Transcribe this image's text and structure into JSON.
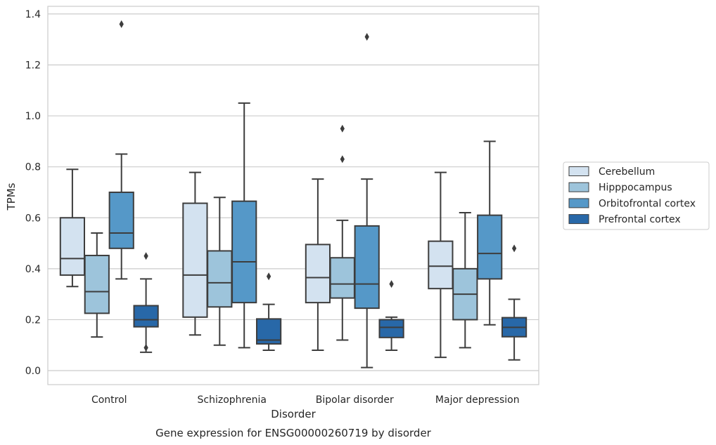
{
  "chart_data": {
    "type": "box",
    "caption": "Gene expression for ENSG00000260719 by disorder",
    "xlabel": "Disorder",
    "ylabel": "TPMs",
    "ylim": [
      -0.055,
      1.43
    ],
    "yticks": [
      0.0,
      0.2,
      0.4,
      0.6,
      0.8,
      1.0,
      1.2,
      1.4
    ],
    "ytick_labels": [
      "0.0",
      "0.2",
      "0.4",
      "0.6",
      "0.8",
      "1.0",
      "1.2",
      "1.4"
    ],
    "grid": "horizontal",
    "legend_position": "right",
    "categories": [
      "Control",
      "Schizophrenia",
      "Bipolar disorder",
      "Major depression"
    ],
    "series": [
      {
        "name": "Cerebellum",
        "color": "#d3e2f0",
        "boxes": [
          {
            "whislo": 0.33,
            "q1": 0.375,
            "med": 0.44,
            "q3": 0.6,
            "whishi": 0.79,
            "fliers": []
          },
          {
            "whislo": 0.14,
            "q1": 0.21,
            "med": 0.375,
            "q3": 0.657,
            "whishi": 0.778,
            "fliers": []
          },
          {
            "whislo": 0.08,
            "q1": 0.267,
            "med": 0.365,
            "q3": 0.495,
            "whishi": 0.752,
            "fliers": []
          },
          {
            "whislo": 0.052,
            "q1": 0.322,
            "med": 0.41,
            "q3": 0.508,
            "whishi": 0.778,
            "fliers": []
          }
        ]
      },
      {
        "name": "Hipppocampus",
        "color": "#9dc4db",
        "boxes": [
          {
            "whislo": 0.132,
            "q1": 0.225,
            "med": 0.31,
            "q3": 0.452,
            "whishi": 0.54,
            "fliers": []
          },
          {
            "whislo": 0.1,
            "q1": 0.25,
            "med": 0.345,
            "q3": 0.47,
            "whishi": 0.68,
            "fliers": []
          },
          {
            "whislo": 0.12,
            "q1": 0.285,
            "med": 0.34,
            "q3": 0.443,
            "whishi": 0.59,
            "fliers": [
              0.83,
              0.95
            ]
          },
          {
            "whislo": 0.09,
            "q1": 0.2,
            "med": 0.3,
            "q3": 0.4,
            "whishi": 0.62,
            "fliers": []
          }
        ]
      },
      {
        "name": "Orbitofrontal cortex",
        "color": "#5598c8",
        "boxes": [
          {
            "whislo": 0.36,
            "q1": 0.48,
            "med": 0.54,
            "q3": 0.7,
            "whishi": 0.85,
            "fliers": [
              1.36
            ]
          },
          {
            "whislo": 0.09,
            "q1": 0.267,
            "med": 0.427,
            "q3": 0.665,
            "whishi": 1.05,
            "fliers": []
          },
          {
            "whislo": 0.012,
            "q1": 0.245,
            "med": 0.34,
            "q3": 0.568,
            "whishi": 0.752,
            "fliers": [
              1.31
            ]
          },
          {
            "whislo": 0.18,
            "q1": 0.36,
            "med": 0.46,
            "q3": 0.61,
            "whishi": 0.9,
            "fliers": []
          }
        ]
      },
      {
        "name": "Prefrontal cortex",
        "color": "#2868a8",
        "boxes": [
          {
            "whislo": 0.072,
            "q1": 0.172,
            "med": 0.2,
            "q3": 0.255,
            "whishi": 0.36,
            "fliers": [
              0.09,
              0.45
            ]
          },
          {
            "whislo": 0.08,
            "q1": 0.105,
            "med": 0.12,
            "q3": 0.203,
            "whishi": 0.26,
            "fliers": [
              0.37
            ]
          },
          {
            "whislo": 0.08,
            "q1": 0.13,
            "med": 0.17,
            "q3": 0.2,
            "whishi": 0.21,
            "fliers": [
              0.34
            ]
          },
          {
            "whislo": 0.042,
            "q1": 0.133,
            "med": 0.17,
            "q3": 0.208,
            "whishi": 0.28,
            "fliers": [
              0.48
            ]
          }
        ]
      }
    ]
  }
}
